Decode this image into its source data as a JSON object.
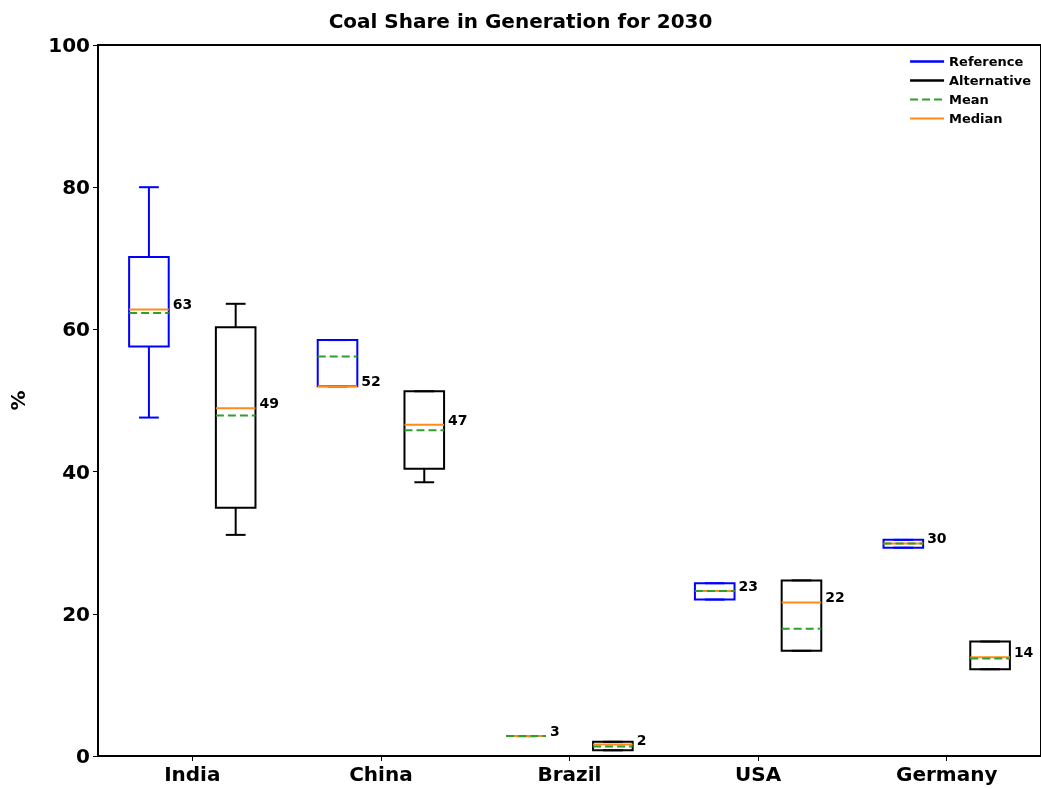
{
  "chart_data": {
    "type": "box",
    "title": "Coal Share in Generation for 2030",
    "ylabel": "%",
    "categories": [
      "India",
      "China",
      "Brazil",
      "USA",
      "Germany"
    ],
    "ylim": [
      0,
      100
    ],
    "yticks": [
      0,
      20,
      40,
      60,
      80,
      100
    ],
    "grid": false,
    "legend": "top right",
    "series": [
      {
        "name": "Reference",
        "color": "#0000ff",
        "boxes": [
          {
            "low": 47.6,
            "q1": 57.6,
            "median": 62.8,
            "q3": 70.2,
            "high": 80,
            "mean": 62.3
          },
          {
            "low": 52,
            "q1": 52,
            "median": 52,
            "q3": 58.5,
            "high": 58.5,
            "mean": 56.2
          },
          {
            "low": 2.8,
            "q1": 2.8,
            "median": 2.8,
            "q3": 2.8,
            "high": 2.8,
            "mean": 2.8
          },
          {
            "low": 22,
            "q1": 22,
            "median": 23.2,
            "q3": 24.3,
            "high": 24.3,
            "mean": 23.2
          },
          {
            "low": 29.3,
            "q1": 29.3,
            "median": 29.9,
            "q3": 30.4,
            "high": 30.4,
            "mean": 29.9
          }
        ],
        "value_labels": [
          "63",
          "52",
          "3",
          "23",
          "30"
        ]
      },
      {
        "name": "Alternative",
        "color": "#000000",
        "boxes": [
          {
            "low": 31.1,
            "q1": 34.9,
            "median": 48.9,
            "q3": 60.3,
            "high": 63.6,
            "mean": 47.9
          },
          {
            "low": 38.5,
            "q1": 40.4,
            "median": 46.6,
            "q3": 51.3,
            "high": 51.3,
            "mean": 45.8
          },
          {
            "low": 0.8,
            "q1": 0.8,
            "median": 1.6,
            "q3": 2,
            "high": 2,
            "mean": 1.35
          },
          {
            "low": 14.8,
            "q1": 14.8,
            "median": 21.6,
            "q3": 24.7,
            "high": 24.7,
            "mean": 17.9
          },
          {
            "low": 12.2,
            "q1": 12.2,
            "median": 13.9,
            "q3": 16.1,
            "high": 16.1,
            "mean": 13.7
          }
        ],
        "value_labels": [
          "49",
          "47",
          "2",
          "22",
          "14"
        ]
      },
      {
        "type": "line",
        "name": "Mean",
        "color": "#2ca02c",
        "line_style": "dashed",
        "values": [
          null,
          null,
          null,
          null,
          null
        ]
      },
      {
        "type": "line",
        "name": "Median",
        "color": "#ff8c1a",
        "line_style": "solid",
        "values": [
          null,
          null,
          null,
          null,
          null
        ]
      }
    ]
  }
}
